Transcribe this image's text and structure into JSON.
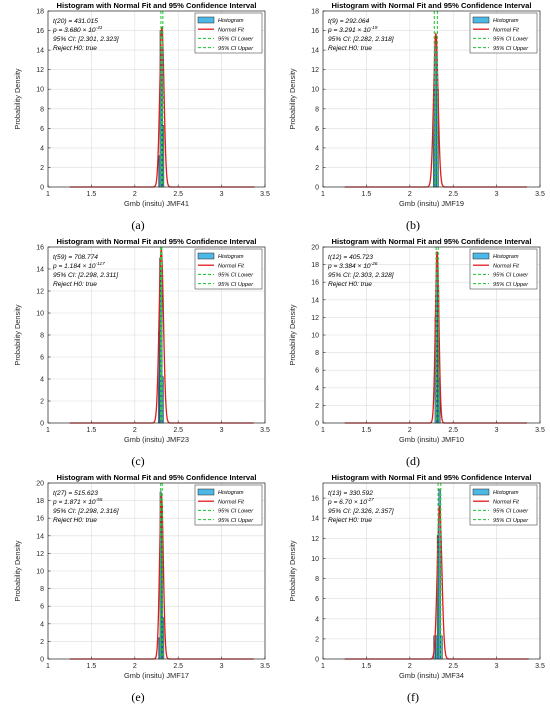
{
  "chart_data": [
    {
      "type": "histogram-with-fit",
      "panel_label": "(a)",
      "title": "Histogram with Normal Fit and 95% Confidence Interval",
      "xlabel": "Gmb (insitu) JMF41",
      "ylabel": "Probability Density",
      "xlim": [
        1,
        3.5
      ],
      "ylim": [
        0,
        18
      ],
      "xticks": [
        "1",
        "1.5",
        "2",
        "2.5",
        "3",
        "3.5"
      ],
      "yticks": [
        "0",
        "2",
        "4",
        "6",
        "8",
        "10",
        "12",
        "14",
        "16",
        "18"
      ],
      "grid": true,
      "legend_position": "top-right",
      "legend": [
        "Histogram",
        "Normal Fit",
        "95% CI Lower",
        "95% CI Upper"
      ],
      "stats": {
        "t": "t(20) = 431.015",
        "p_base": "p = 3.680 × 10",
        "p_exp": "-41",
        "ci": "95% CI: [2.301, 2.323]",
        "reject": "Reject H0: true"
      },
      "histogram": {
        "edges": [
          2.275,
          2.29,
          2.305,
          2.32,
          2.335,
          2.35
        ],
        "densities": [
          3.2,
          16.0,
          14.3,
          6.3,
          0.0
        ]
      },
      "normal_fit": {
        "mean": 2.312,
        "sd": 0.0245,
        "x_range": [
          1.25,
          3.38
        ]
      },
      "ci_lower": 2.301,
      "ci_upper": 2.323
    },
    {
      "type": "histogram-with-fit",
      "panel_label": "(b)",
      "title": "Histogram with Normal Fit and 95% Confidence Interval",
      "xlabel": "Gmb (insitu) JMF19",
      "ylabel": "Probability Density",
      "xlim": [
        1,
        3.5
      ],
      "ylim": [
        0,
        18
      ],
      "xticks": [
        "1",
        "1.5",
        "2",
        "2.5",
        "3",
        "3.5"
      ],
      "yticks": [
        "0",
        "2",
        "4",
        "6",
        "8",
        "10",
        "12",
        "14",
        "16",
        "18"
      ],
      "grid": true,
      "legend_position": "top-right",
      "legend": [
        "Histogram",
        "Normal Fit",
        "95% CI Lower",
        "95% CI Upper"
      ],
      "stats": {
        "t": "t(9) = 292.064",
        "p_base": "p = 3.291 × 10",
        "p_exp": "-19",
        "ci": "95% CI: [2.282, 2.318]",
        "reject": "Reject H0: true"
      },
      "histogram": {
        "edges": [
          2.27,
          2.29,
          2.31,
          2.33
        ],
        "densities": [
          10.0,
          15.3,
          10.0
        ]
      },
      "normal_fit": {
        "mean": 2.3,
        "sd": 0.0255,
        "x_range": [
          1.25,
          3.35
        ]
      },
      "ci_lower": 2.282,
      "ci_upper": 2.318
    },
    {
      "type": "histogram-with-fit",
      "panel_label": "(c)",
      "title": "Histogram with Normal Fit and 95% Confidence Interval",
      "xlabel": "Gmb (insitu) JMF23",
      "ylabel": "Probability Density",
      "xlim": [
        1,
        3.5
      ],
      "ylim": [
        0,
        16
      ],
      "xticks": [
        "1",
        "1.5",
        "2",
        "2.5",
        "3",
        "3.5"
      ],
      "yticks": [
        "0",
        "2",
        "4",
        "6",
        "8",
        "10",
        "12",
        "14",
        "16"
      ],
      "grid": true,
      "legend_position": "top-right",
      "legend": [
        "Histogram",
        "Normal Fit",
        "95% CI Lower",
        "95% CI Upper"
      ],
      "stats": {
        "t": "t(59) = 708.774",
        "p_base": "p = 1.184 × 10",
        "p_exp": "-117",
        "ci": "95% CI: [2.298, 2.311]",
        "reject": "Reject H0: true"
      },
      "histogram": {
        "edges": [
          2.27,
          2.285,
          2.3,
          2.315,
          2.33,
          2.345
        ],
        "densities": [
          8.3,
          15.0,
          14.2,
          4.2,
          0.0
        ]
      },
      "normal_fit": {
        "mean": 2.305,
        "sd": 0.0253,
        "x_range": [
          1.25,
          3.37
        ]
      },
      "ci_lower": 2.298,
      "ci_upper": 2.311
    },
    {
      "type": "histogram-with-fit",
      "panel_label": "(d)",
      "title": "Histogram with Normal Fit and 95% Confidence Interval",
      "xlabel": "Gmb (insitu) JMF10",
      "ylabel": "Probability Density",
      "xlim": [
        1,
        3.5
      ],
      "ylim": [
        0,
        20
      ],
      "xticks": [
        "1",
        "1.5",
        "2",
        "2.5",
        "3",
        "3.5"
      ],
      "yticks": [
        "0",
        "2",
        "4",
        "6",
        "8",
        "10",
        "12",
        "14",
        "16",
        "18",
        "20"
      ],
      "grid": true,
      "legend_position": "top-right",
      "legend": [
        "Histogram",
        "Normal Fit",
        "95% CI Lower",
        "95% CI Upper"
      ],
      "stats": {
        "t": "t(12) = 405.723",
        "p_base": "p = 3.384 × 10",
        "p_exp": "-26",
        "ci": "95% CI: [2.303, 2.328]",
        "reject": "Reject H0: true"
      },
      "histogram": {
        "edges": [
          2.29,
          2.305,
          2.32,
          2.335,
          2.35
        ],
        "densities": [
          12.0,
          19.0,
          15.5,
          5.1
        ]
      },
      "normal_fit": {
        "mean": 2.315,
        "sd": 0.0205,
        "x_range": [
          1.25,
          3.35
        ]
      },
      "ci_lower": 2.303,
      "ci_upper": 2.328
    },
    {
      "type": "histogram-with-fit",
      "panel_label": "(e)",
      "title": "Histogram with Normal Fit and 95% Confidence Interval",
      "xlabel": "Gmb (insitu) JMF17",
      "ylabel": "Probability Density",
      "xlim": [
        1,
        3.5
      ],
      "ylim": [
        0,
        20
      ],
      "xticks": [
        "1",
        "1.5",
        "2",
        "2.5",
        "3",
        "3.5"
      ],
      "yticks": [
        "0",
        "2",
        "4",
        "6",
        "8",
        "10",
        "12",
        "14",
        "16",
        "18",
        "20"
      ],
      "grid": true,
      "legend_position": "top-right",
      "legend": [
        "Histogram",
        "Normal Fit",
        "95% CI Lower",
        "95% CI Upper"
      ],
      "stats": {
        "t": "t(27) = 515.623",
        "p_base": "p = 1.871 × 10",
        "p_exp": "-55",
        "ci": "95% CI: [2.298, 2.316]",
        "reject": "Reject H0: true"
      },
      "histogram": {
        "edges": [
          2.275,
          2.29,
          2.305,
          2.32,
          2.335,
          2.35
        ],
        "densities": [
          2.4,
          19.0,
          17.5,
          4.7,
          0.0
        ]
      },
      "normal_fit": {
        "mean": 2.307,
        "sd": 0.0215,
        "x_range": [
          1.25,
          3.37
        ]
      },
      "ci_lower": 2.298,
      "ci_upper": 2.316
    },
    {
      "type": "histogram-with-fit",
      "panel_label": "(f)",
      "title": "Histogram with Normal Fit and 95% Confidence Interval",
      "xlabel": "Gmb (insitu) JMF34",
      "ylabel": "Probability Density",
      "xlim": [
        1,
        3.5
      ],
      "ylim": [
        0,
        17.5
      ],
      "xticks": [
        "1",
        "1.5",
        "2",
        "2.5",
        "3",
        "3.5"
      ],
      "yticks": [
        "0",
        "2",
        "4",
        "6",
        "8",
        "10",
        "12",
        "14",
        "16"
      ],
      "grid": true,
      "legend_position": "top-right",
      "legend": [
        "Histogram",
        "Normal Fit",
        "95% CI Lower",
        "95% CI Upper"
      ],
      "stats": {
        "t": "t(13) = 330.592",
        "p_base": "p = 6.70 × 10",
        "p_exp": "-27",
        "ci": "95% CI: [2.326, 2.357]",
        "reject": "Reject H0: true"
      },
      "histogram": {
        "edges": [
          2.275,
          2.295,
          2.315,
          2.335,
          2.355,
          2.375
        ],
        "densities": [
          2.3,
          2.3,
          12.3,
          16.9,
          2.3
        ]
      },
      "normal_fit": {
        "mean": 2.343,
        "sd": 0.0265,
        "x_range": [
          1.25,
          3.37
        ]
      },
      "ci_lower": 2.326,
      "ci_upper": 2.357
    }
  ],
  "colors": {
    "histogram_fill": "#4db8e6",
    "histogram_edge": "#222222",
    "normal_fit": "#e01b1b",
    "ci_lines": "#2ecc40",
    "grid": "#dcdcdc",
    "axis": "#262626"
  }
}
